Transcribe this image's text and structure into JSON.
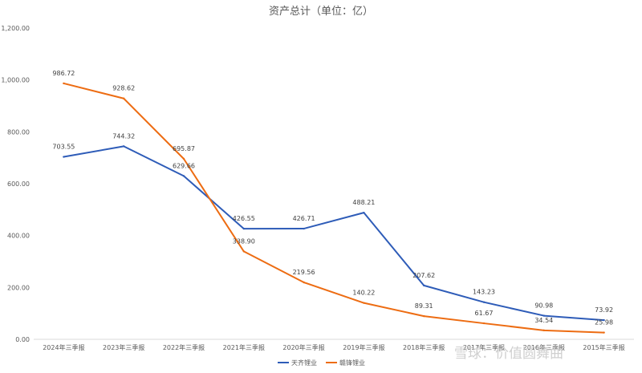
{
  "chart_data": {
    "type": "line",
    "title": "资产总计（单位：亿）",
    "categories": [
      "2024年三季报",
      "2023年三季报",
      "2022年三季报",
      "2021年三季报",
      "2020年三季报",
      "2019年三季报",
      "2018年三季报",
      "2017年三季报",
      "2016年三季报",
      "2015年三季报"
    ],
    "series": [
      {
        "name": "天齐锂业",
        "color": "#2e5cb8",
        "values": [
          703.55,
          744.32,
          629.66,
          426.55,
          426.71,
          488.21,
          207.62,
          143.23,
          90.98,
          73.92
        ],
        "labels": [
          "703.55",
          "744.32",
          "629.66",
          "426.55",
          "426.71",
          "488.21",
          "207.62",
          "143.23",
          "90.98",
          "73.92"
        ]
      },
      {
        "name": "赣锋锂业",
        "color": "#ed6c12",
        "values": [
          986.72,
          928.62,
          695.87,
          338.9,
          219.56,
          140.22,
          89.31,
          61.67,
          34.54,
          25.98
        ],
        "labels": [
          "986.72",
          "928.62",
          "695.87",
          "338.90",
          "219.56",
          "140.22",
          "89.31",
          "61.67",
          "34.54",
          "25.98"
        ]
      }
    ],
    "y_ticks": [
      "0.00",
      "200.00",
      "400.00",
      "600.00",
      "800.00",
      "1,000.00",
      "1,200.00"
    ],
    "ylim": [
      0,
      1200
    ],
    "grid": false,
    "legend": "bottom"
  },
  "watermark": "雪球：价值圆舞曲"
}
